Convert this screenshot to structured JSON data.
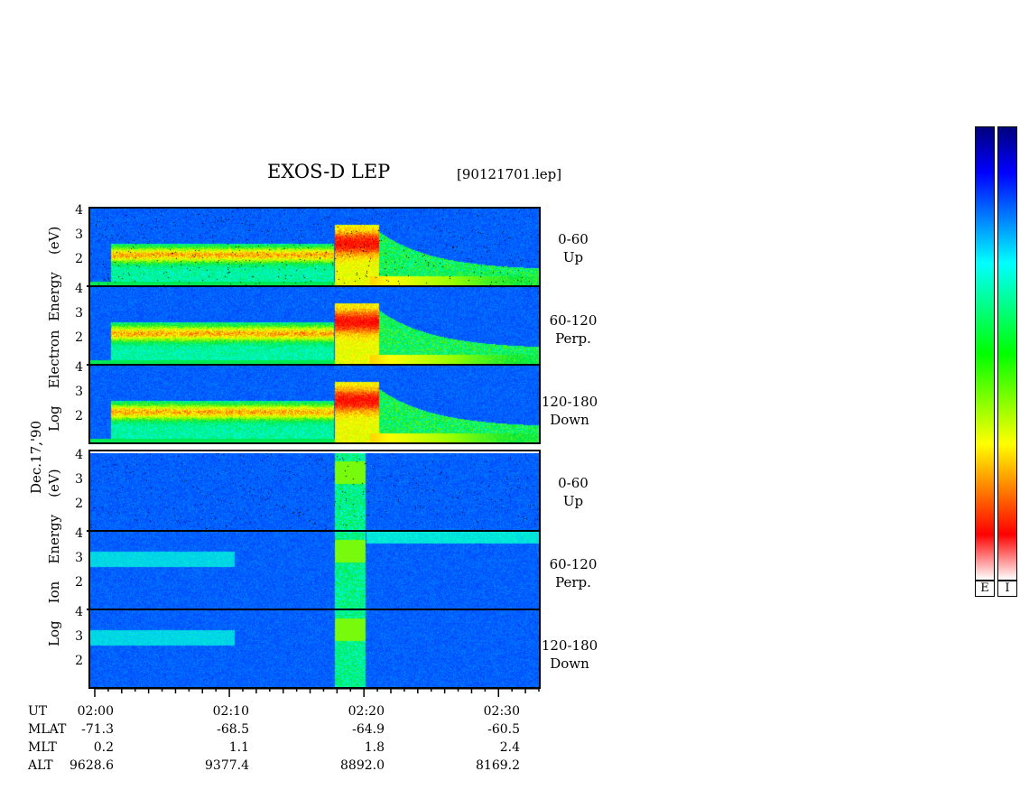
{
  "header": {
    "title": "EXOS-D LEP",
    "file": "[90121701.lep]"
  },
  "date_label": "Dec.17,'90",
  "electron_group": {
    "axis_label_lines": [
      "Log",
      "Electron",
      "Energy",
      "(eV)"
    ],
    "panels": [
      {
        "range": "0-60",
        "direction": "Up"
      },
      {
        "range": "60-120",
        "direction": "Perp."
      },
      {
        "range": "120-180",
        "direction": "Down"
      }
    ]
  },
  "ion_group": {
    "axis_label_lines": [
      "Log",
      "Ion",
      "Energy",
      "(eV)"
    ],
    "panels": [
      {
        "range": "0-60",
        "direction": "Up"
      },
      {
        "range": "60-120",
        "direction": "Perp."
      },
      {
        "range": "120-180",
        "direction": "Down"
      }
    ]
  },
  "y_ticks": [
    "4",
    "3",
    "2"
  ],
  "x_axis": {
    "tick_labels": [
      "02:00",
      "02:10",
      "02:20",
      "02:30"
    ]
  },
  "ephemeris": {
    "rows": [
      {
        "label": "UT",
        "values": [
          "02:00",
          "02:10",
          "02:20",
          "02:30"
        ]
      },
      {
        "label": "MLAT",
        "values": [
          "-71.3",
          "-68.5",
          "-64.9",
          "-60.5"
        ]
      },
      {
        "label": "MLT",
        "values": [
          "0.2",
          "1.1",
          "1.8",
          "2.4"
        ]
      },
      {
        "label": "ALT",
        "values": [
          "9628.6",
          "9377.4",
          "8892.0",
          "8169.2"
        ]
      }
    ]
  },
  "colorbar": {
    "labels": [
      "E",
      "I"
    ],
    "colors": [
      "#00007f",
      "#0000ff",
      "#007fff",
      "#00ffff",
      "#00ff7f",
      "#00ff00",
      "#7fff00",
      "#ffff00",
      "#ff7f00",
      "#ff0000",
      "#ffffff"
    ]
  },
  "chart_data": {
    "type": "heatmap",
    "title": "EXOS-D LEP",
    "xlabel": "UT",
    "x_range": [
      "02:00",
      "02:33"
    ],
    "ylim": [
      1,
      4
    ],
    "y_scale": "log10 energy (eV)",
    "panels": [
      {
        "species": "Electron",
        "pitch_angle": "0-60",
        "direction": "Up"
      },
      {
        "species": "Electron",
        "pitch_angle": "60-120",
        "direction": "Perp."
      },
      {
        "species": "Electron",
        "pitch_angle": "120-180",
        "direction": "Down"
      },
      {
        "species": "Ion",
        "pitch_angle": "0-60",
        "direction": "Up"
      },
      {
        "species": "Ion",
        "pitch_angle": "60-120",
        "direction": "Perp."
      },
      {
        "species": "Ion",
        "pitch_angle": "120-180",
        "direction": "Down"
      }
    ]
  }
}
